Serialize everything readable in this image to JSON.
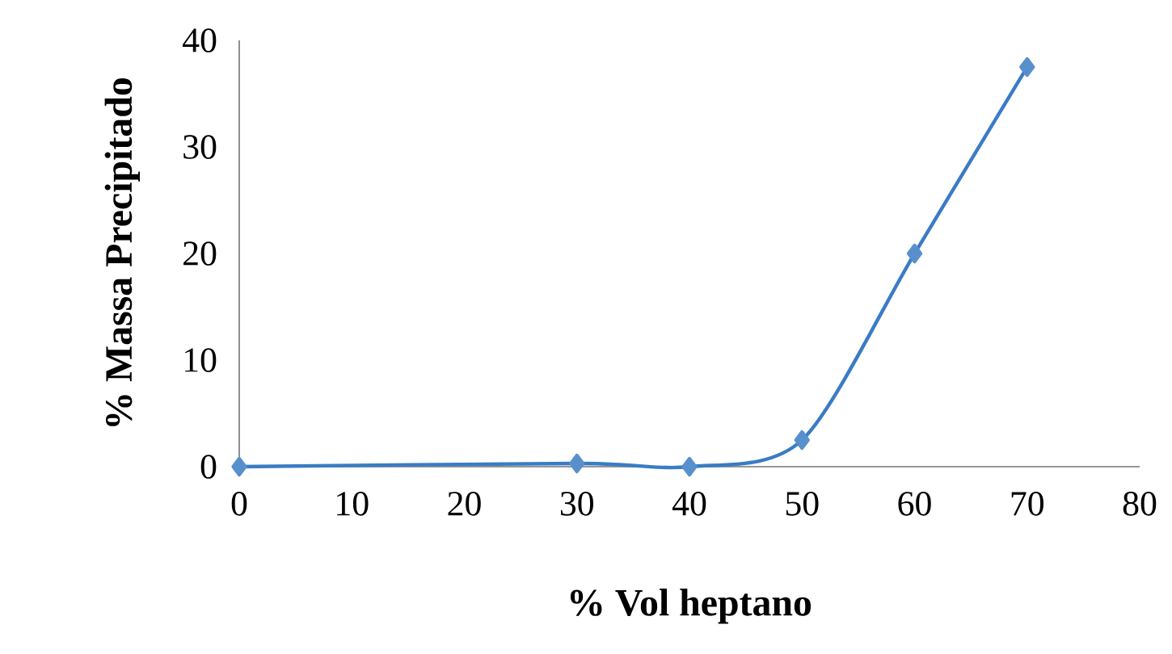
{
  "chart_data": {
    "type": "line",
    "xlabel": "% Vol heptano",
    "ylabel": "% Massa Precipitado",
    "x": [
      0,
      30,
      40,
      50,
      60,
      70
    ],
    "series": [
      {
        "color": "#3a7cc4",
        "values": [
          0,
          0.3,
          0,
          2.5,
          20,
          37.5
        ]
      }
    ],
    "xlim": [
      0,
      80
    ],
    "xticks": [
      0,
      10,
      20,
      30,
      40,
      50,
      60,
      70,
      80
    ],
    "ylim": [
      0,
      40
    ],
    "yticks": [
      0,
      10,
      20,
      30,
      40
    ],
    "marker": "diamond",
    "grid": false
  }
}
